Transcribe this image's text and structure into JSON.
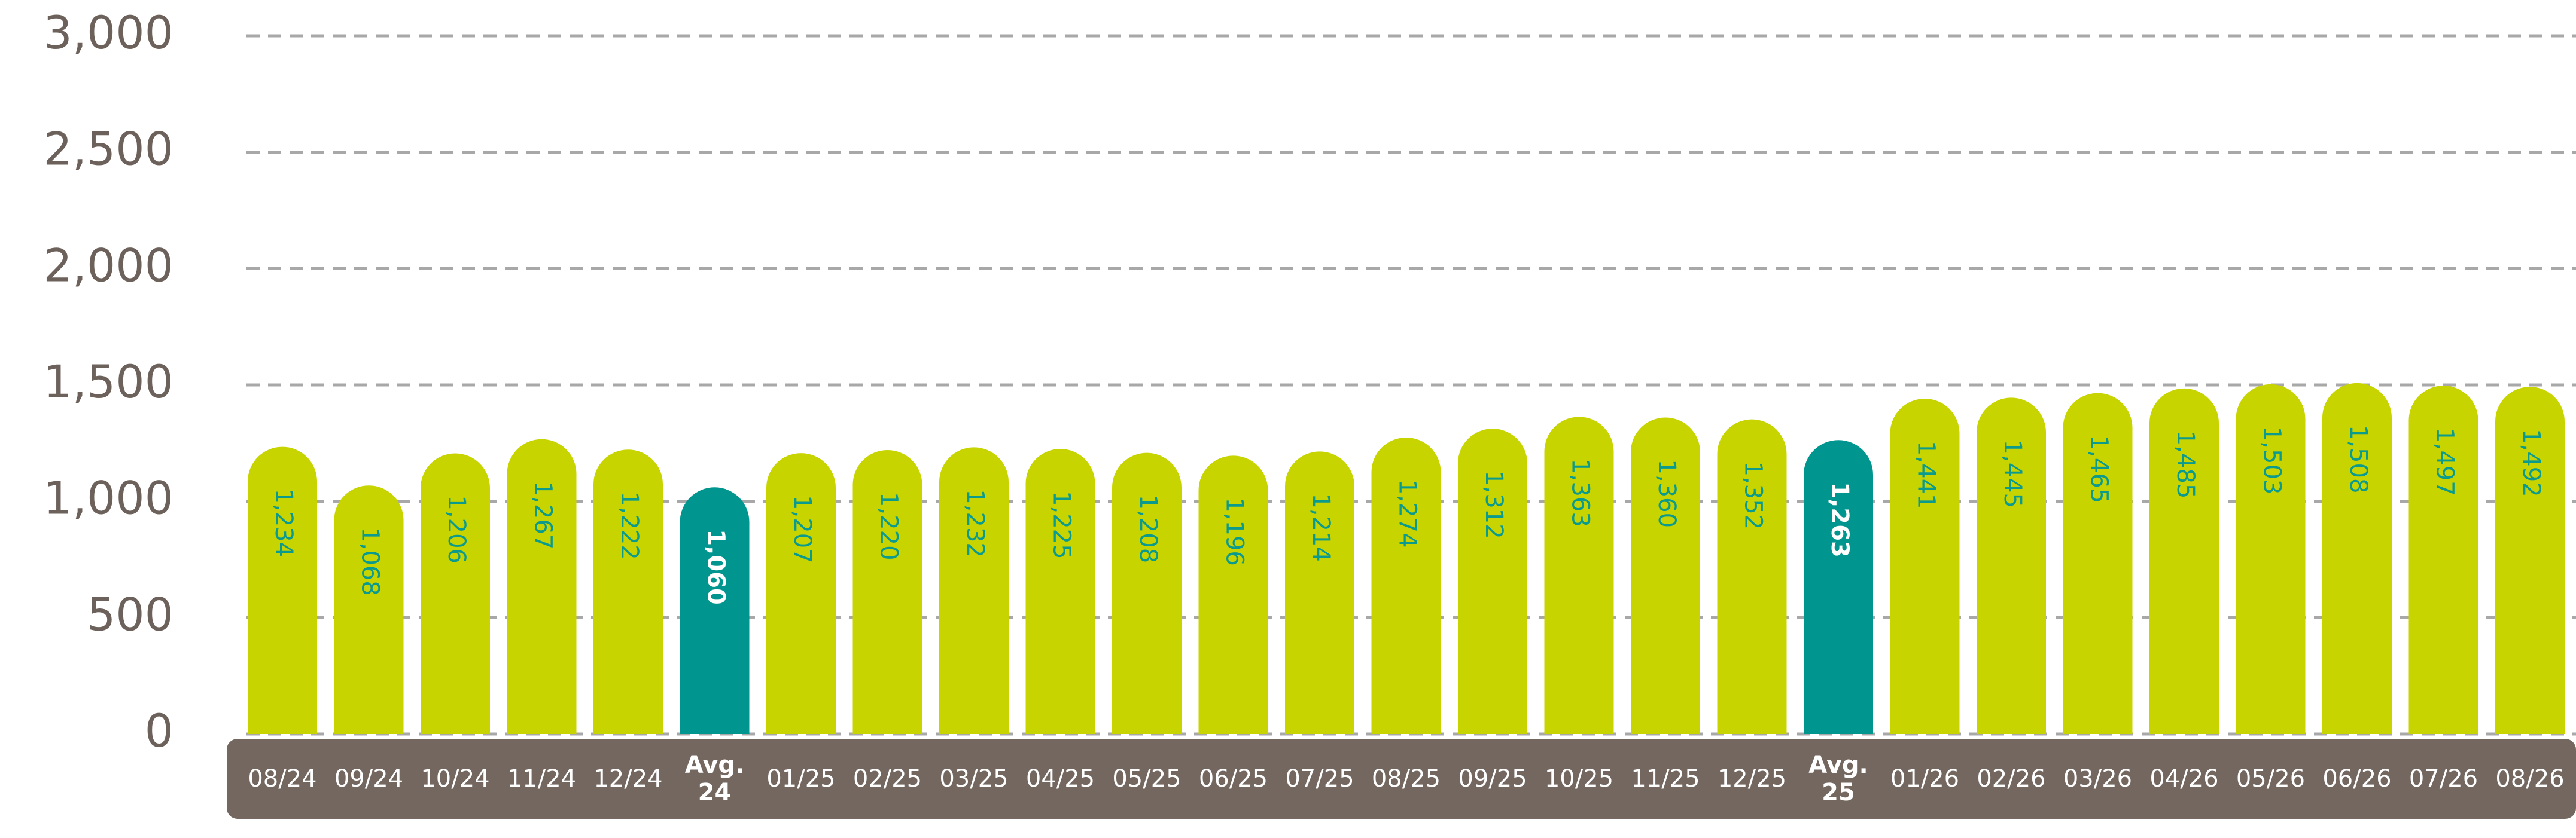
{
  "chart_data": {
    "type": "bar",
    "categories": [
      "08/24",
      "09/24",
      "10/24",
      "11/24",
      "12/24",
      "Avg. 24",
      "01/25",
      "02/25",
      "03/25",
      "04/25",
      "05/25",
      "06/25",
      "07/25",
      "08/25",
      "09/25",
      "10/25",
      "11/25",
      "12/25",
      "Avg. 25",
      "01/26",
      "02/26",
      "03/26",
      "04/26",
      "05/26",
      "06/26",
      "07/26",
      "08/26"
    ],
    "values": [
      1234,
      1068,
      1206,
      1267,
      1222,
      1060,
      1207,
      1220,
      1232,
      1225,
      1208,
      1196,
      1214,
      1274,
      1312,
      1363,
      1360,
      1352,
      1263,
      1441,
      1445,
      1465,
      1485,
      1503,
      1508,
      1497,
      1492
    ],
    "value_labels": [
      "1,234",
      "1,068",
      "1,206",
      "1,267",
      "1,222",
      "1,060",
      "1,207",
      "1,220",
      "1,232",
      "1,225",
      "1,208",
      "1,196",
      "1,214",
      "1,274",
      "1,312",
      "1,363",
      "1,360",
      "1,352",
      "1,263",
      "1,441",
      "1,445",
      "1,465",
      "1,485",
      "1,503",
      "1,508",
      "1,497",
      "1,492"
    ],
    "color": "#c8d400",
    "highlight_color": "#00968f",
    "label_color": "#0a9a8e",
    "highlight_label_color": "#ffffff",
    "highlight": [
      5,
      18
    ],
    "ylim": [
      0,
      3000
    ],
    "yticks": [
      0,
      {
        "value": 500,
        "label": "500"
      },
      {
        "value": 1000,
        "label": "1,000"
      },
      {
        "value": 1500,
        "label": "1,500"
      },
      {
        "value": 2000,
        "label": "2,000"
      },
      {
        "value": 2500,
        "label": "2,500"
      },
      {
        "value": 3000,
        "label": "3,000"
      }
    ],
    "grid": true
  }
}
